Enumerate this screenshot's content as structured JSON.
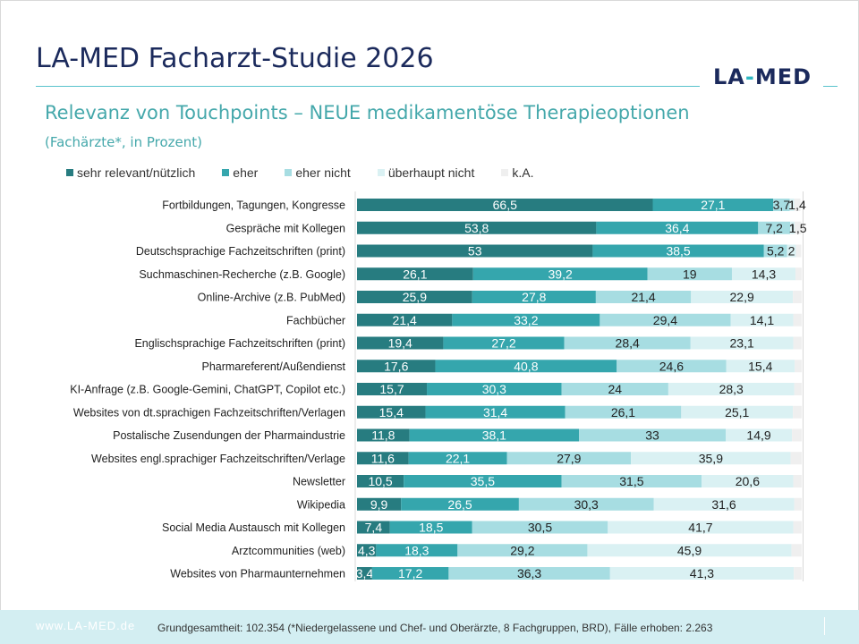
{
  "header": {
    "title": "LA-MED Facharzt-Studie 2026",
    "logo_left": "LA",
    "logo_dash": "-",
    "logo_right": "MED",
    "subtitle": "Relevanz von Touchpoints – NEUE medikamentöse Therapieoptionen",
    "subsubtitle": "(Fachärzte*, in Prozent)"
  },
  "footer": {
    "url": "www.LA-MED.de",
    "note": "Grundgesamtheit: 102.354 (*Niedergelassene und Chef- und Oberärzte, 8 Fachgruppen, BRD), Fälle erhoben: 2.263"
  },
  "colors": {
    "sehr": "#277c80",
    "eher": "#35a6ad",
    "eher_nicht": "#a7dde2",
    "ueberhaupt": "#daf1f3",
    "ka": "#efefef",
    "title": "#1b2a5c",
    "accent": "#45a8ab"
  },
  "chart_data": {
    "type": "bar",
    "orientation": "horizontal",
    "stacked": true,
    "categories": [
      "Fortbildungen, Tagungen, Kongresse",
      "Gespräche mit Kollegen",
      "Deutschsprachige Fachzeitschriften (print)",
      "Suchmaschinen-Recherche (z.B. Google)",
      "Online-Archive (z.B. PubMed)",
      "Fachbücher",
      "Englischsprachige Fachzeitschriften (print)",
      "Pharmareferent/Außendienst",
      "KI-Anfrage (z.B. Google-Gemini, ChatGPT, Copilot etc.)",
      "Websites von dt.sprachigen Fachzeitschriften/Verlagen",
      "Postalische Zusendungen der Pharmaindustrie",
      "Websites engl.sprachiger Fachzeitschriften/Verlage",
      "Newsletter",
      "Wikipedia",
      "Social Media Austausch mit Kollegen",
      "Arztcommunities (web)",
      "Websites von Pharmaunternehmen"
    ],
    "series": [
      {
        "name": "sehr relevant/nützlich",
        "color": "#277c80",
        "values": [
          66.5,
          53.8,
          53,
          26.1,
          25.9,
          21.4,
          19.4,
          17.6,
          15.7,
          15.4,
          11.8,
          11.6,
          10.5,
          9.9,
          7.4,
          4.3,
          3.4
        ]
      },
      {
        "name": "eher",
        "color": "#35a6ad",
        "values": [
          27.1,
          36.4,
          38.5,
          39.2,
          27.8,
          33.2,
          27.2,
          40.8,
          30.3,
          31.4,
          38.1,
          22.1,
          35.5,
          26.5,
          18.5,
          18.3,
          17.2
        ]
      },
      {
        "name": "eher nicht",
        "color": "#a7dde2",
        "values": [
          3.7,
          7.2,
          5.2,
          19,
          21.4,
          29.4,
          28.4,
          24.6,
          24,
          26.1,
          33,
          27.9,
          31.5,
          30.3,
          30.5,
          29.2,
          36.3
        ]
      },
      {
        "name": "überhaupt nicht",
        "color": "#daf1f3",
        "values": [
          1,
          1,
          2,
          14.3,
          22.9,
          14.1,
          23.1,
          15.4,
          28.3,
          25.1,
          14.9,
          35.9,
          20.6,
          31.6,
          41.7,
          45.9,
          41.3
        ]
      },
      {
        "name": "k.A.",
        "color": "#efefef",
        "values": [
          1.4,
          1.5,
          1.2,
          1.4,
          2.0,
          1.9,
          1.9,
          1.6,
          1.7,
          2.0,
          2.2,
          2.5,
          1.9,
          1.7,
          1.9,
          2.3,
          1.8
        ]
      }
    ],
    "data_labels": [
      [
        "66,5",
        "27,1",
        "3,7",
        "1",
        "1,4"
      ],
      [
        "53,8",
        "36,4",
        "7,2",
        "1",
        "1,5"
      ],
      [
        "53",
        "38,5",
        "5,2",
        "2",
        ""
      ],
      [
        "26,1",
        "39,2",
        "19",
        "14,3",
        ""
      ],
      [
        "25,9",
        "27,8",
        "21,4",
        "22,9",
        ""
      ],
      [
        "21,4",
        "33,2",
        "29,4",
        "14,1",
        ""
      ],
      [
        "19,4",
        "27,2",
        "28,4",
        "23,1",
        ""
      ],
      [
        "17,6",
        "40,8",
        "24,6",
        "15,4",
        ""
      ],
      [
        "15,7",
        "30,3",
        "24",
        "28,3",
        ""
      ],
      [
        "15,4",
        "31,4",
        "26,1",
        "25,1",
        ""
      ],
      [
        "11,8",
        "38,1",
        "33",
        "14,9",
        ""
      ],
      [
        "11,6",
        "22,1",
        "27,9",
        "35,9",
        ""
      ],
      [
        "10,5",
        "35,5",
        "31,5",
        "20,6",
        ""
      ],
      [
        "9,9",
        "26,5",
        "30,3",
        "31,6",
        ""
      ],
      [
        "7,4",
        "18,5",
        "30,5",
        "41,7",
        ""
      ],
      [
        "4,3",
        "18,3",
        "29,2",
        "45,9",
        ""
      ],
      [
        "3,4",
        "17,2",
        "36,3",
        "41,3",
        ""
      ]
    ],
    "xlim": [
      0,
      100
    ],
    "legend_position": "top",
    "grid": false
  }
}
